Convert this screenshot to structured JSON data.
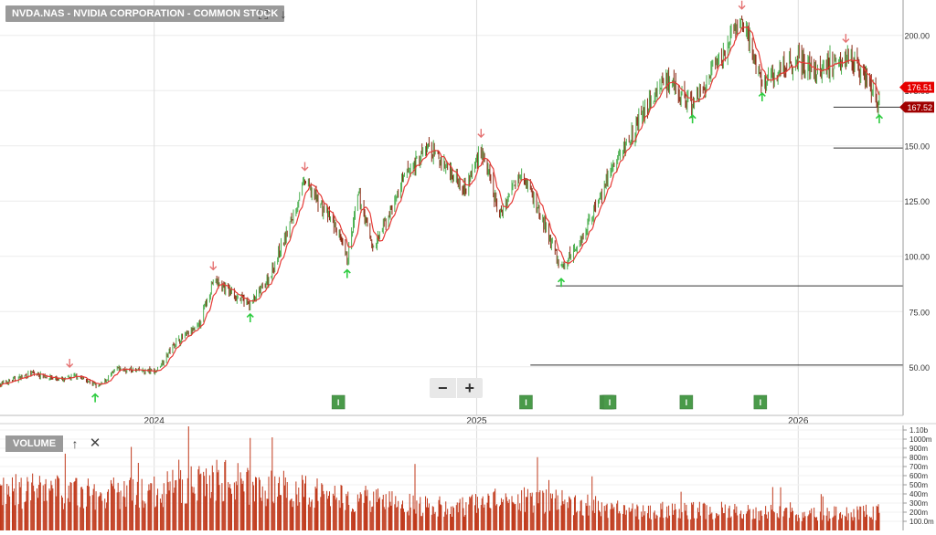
{
  "header": {
    "title": "NVDA.NAS - NVIDIA CORPORATION - COMMON STOCK",
    "icons": [
      "fullscreen-icon",
      "download-icon"
    ]
  },
  "volume_panel": {
    "label": "VOLUME",
    "icons": [
      "move-up-icon",
      "close-icon"
    ]
  },
  "zoom": {
    "minus": "−",
    "plus": "+"
  },
  "colors": {
    "up": "#4caf50",
    "down": "#8b2a14",
    "ma": "#e53935",
    "arrow_up": "#2ecc40",
    "arrow_down": "#e57373",
    "marker": "#4a9a4a",
    "volume": "#c0391b",
    "tag_red": "#e60000",
    "tag_dark": "#a00000"
  },
  "chart_data": [
    {
      "type": "candlestick",
      "title": "NVDA.NAS - NVIDIA CORPORATION - COMMON STOCK",
      "x_tick_labels": [
        "2024",
        "2025",
        "2026"
      ],
      "y_tick_labels": [
        "50.00",
        "75.00",
        "100.00",
        "125.00",
        "150.00",
        "175.00",
        "200.00"
      ],
      "ylim": [
        28,
        216
      ],
      "xlim": [
        "2023-07-10",
        "2026-04-30"
      ],
      "scale": "linear",
      "grid": true,
      "price_path": [
        [
          "2023-07-10",
          42
        ],
        [
          "2023-08-15",
          47
        ],
        [
          "2023-09-20",
          44
        ],
        [
          "2023-10-05",
          46
        ],
        [
          "2023-10-30",
          41
        ],
        [
          "2023-11-20",
          49
        ],
        [
          "2023-12-20",
          48
        ],
        [
          "2024-01-03",
          48
        ],
        [
          "2024-01-25",
          61
        ],
        [
          "2024-02-20",
          68
        ],
        [
          "2024-03-08",
          89
        ],
        [
          "2024-04-19",
          78
        ],
        [
          "2024-05-10",
          90
        ],
        [
          "2024-05-30",
          110
        ],
        [
          "2024-06-20",
          134
        ],
        [
          "2024-07-25",
          113
        ],
        [
          "2024-08-07",
          98
        ],
        [
          "2024-08-20",
          128
        ],
        [
          "2024-09-06",
          103
        ],
        [
          "2024-10-14",
          138
        ],
        [
          "2024-11-07",
          149
        ],
        [
          "2024-12-20",
          131
        ],
        [
          "2025-01-06",
          149
        ],
        [
          "2025-01-27",
          118
        ],
        [
          "2025-02-20",
          140
        ],
        [
          "2025-03-15",
          118
        ],
        [
          "2025-04-07",
          94
        ],
        [
          "2025-04-30",
          108
        ],
        [
          "2025-05-30",
          136
        ],
        [
          "2025-06-25",
          155
        ],
        [
          "2025-07-31",
          180
        ],
        [
          "2025-09-03",
          168
        ],
        [
          "2025-09-25",
          182
        ],
        [
          "2025-10-29",
          207
        ],
        [
          "2025-11-21",
          178
        ],
        [
          "2025-12-31",
          190
        ],
        [
          "2026-01-20",
          183
        ],
        [
          "2026-02-24",
          192
        ],
        [
          "2026-03-20",
          181
        ],
        [
          "2026-04-03",
          168
        ]
      ],
      "moving_average": "red line",
      "signals_down": [
        "2023-09-27",
        "2024-03-08",
        "2024-06-20",
        "2025-01-06",
        "2025-10-29",
        "2026-02-24"
      ],
      "signals_up": [
        "2023-10-26",
        "2024-04-19",
        "2024-08-07",
        "2025-04-07",
        "2025-09-03",
        "2025-11-21",
        "2026-04-03"
      ],
      "support_lines": [
        {
          "value": 167.52,
          "from": "2026-02-10"
        },
        {
          "value": 149,
          "from": "2026-02-10"
        },
        {
          "value": 86.6,
          "from": "2025-04-01"
        },
        {
          "value": 50.8,
          "from": "2025-03-03"
        }
      ],
      "price_tags": [
        "176.51",
        "167.52"
      ],
      "markers": [
        {
          "date": "2024-07-28",
          "label": "I"
        },
        {
          "date": "2025-02-26",
          "label": "I"
        },
        {
          "date": "2025-05-28",
          "label": "I"
        },
        {
          "date": "2025-05-30",
          "label": "I"
        },
        {
          "date": "2025-06-01",
          "label": "I"
        },
        {
          "date": "2025-08-27",
          "label": "I"
        },
        {
          "date": "2025-11-19",
          "label": "I"
        }
      ]
    },
    {
      "type": "bar",
      "title": "VOLUME",
      "y_tick_labels": [
        "1.10b",
        "1000m",
        "900m",
        "800m",
        "700m",
        "600m",
        "500m",
        "400m",
        "300m",
        "200m",
        "100.0m"
      ],
      "ylim": [
        0,
        1150
      ],
      "volume_level": [
        [
          "2023-07-10",
          420
        ],
        [
          "2023-09-01",
          440
        ],
        [
          "2023-11-01",
          380
        ],
        [
          "2024-01-01",
          420
        ],
        [
          "2024-03-01",
          560
        ],
        [
          "2024-06-01",
          450
        ],
        [
          "2024-09-01",
          330
        ],
        [
          "2024-12-01",
          250
        ],
        [
          "2025-02-01",
          330
        ],
        [
          "2025-04-01",
          320
        ],
        [
          "2025-07-01",
          210
        ],
        [
          "2025-10-01",
          220
        ],
        [
          "2026-01-01",
          180
        ],
        [
          "2026-04-03",
          200
        ]
      ]
    }
  ]
}
